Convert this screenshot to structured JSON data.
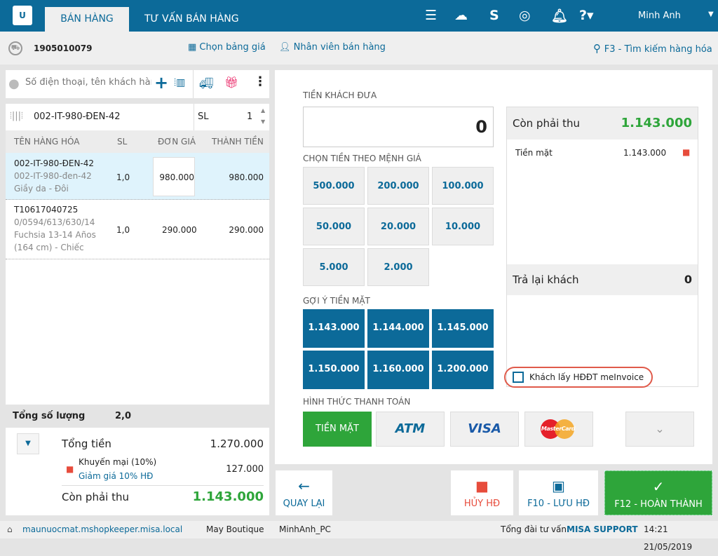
{
  "header": {
    "tabs": [
      {
        "label": "BÁN HÀNG",
        "active": true
      },
      {
        "label": "TƯ VẤN BÁN HÀNG",
        "active": false
      }
    ],
    "icons": [
      "menu-icon",
      "cloud-sync-icon",
      "invoice-s-icon",
      "swirl-logo-icon",
      "bell-icon",
      "help-icon"
    ],
    "user": "Minh Anh",
    "brand_color": "#0c6a99"
  },
  "subbar": {
    "invoice_no": "1905010079",
    "price_list": "Chọn bảng giá",
    "salesperson": "Nhân viên bán hàng",
    "search": "F3 - Tìm kiếm hàng hóa"
  },
  "customer": {
    "placeholder": "Số điện thoại, tên khách hàng"
  },
  "item_input": {
    "value": "002-IT-980-ĐEN-42",
    "qty_label": "SL",
    "qty": "1"
  },
  "table": {
    "headers": [
      "TÊN HÀNG HÓA",
      "SL",
      "ĐƠN GIÁ",
      "THÀNH TIỀN"
    ],
    "rows": [
      {
        "code": "002-IT-980-ĐEN-42",
        "sku": "002-IT-980-đen-42",
        "desc": "Giầy da - Đôi",
        "qty": "1,0",
        "price": "980.000",
        "total": "980.000"
      },
      {
        "code": "T10617040725",
        "sku": "0/0594/613/630/14",
        "desc": "Fuchsia 13-14 Años",
        "desc2": "(164 cm) - Chiếc",
        "qty": "1,0",
        "price": "290.000",
        "total": "290.000"
      }
    ]
  },
  "summary": {
    "qty_label": "Tổng số lượng",
    "qty": "2,0",
    "total_label": "Tổng tiền",
    "total": "1.270.000",
    "promo_label": "Khuyến mại (10%)",
    "promo_desc": "Giảm giá 10% HĐ",
    "promo": "127.000",
    "due_label": "Còn phải thu",
    "due": "1.143.000"
  },
  "payment": {
    "given_label": "TIỀN KHÁCH ĐƯA",
    "given": "0",
    "denom_label": "CHỌN TIỀN THEO MỆNH GIÁ",
    "denoms": [
      "500.000",
      "200.000",
      "100.000",
      "50.000",
      "20.000",
      "10.000",
      "5.000",
      "2.000"
    ],
    "suggest_label": "GỢI Ý TIỀN MẶT",
    "suggests": [
      "1.143.000",
      "1.144.000",
      "1.145.000",
      "1.150.000",
      "1.160.000",
      "1.200.000"
    ],
    "due_label": "Còn phải thu",
    "due": "1.143.000",
    "cash_label": "Tiền mặt",
    "cash": "1.143.000",
    "change_label": "Trả lại khách",
    "change": "0",
    "einvoice_label": "Khách lấy HĐĐT meInvoice",
    "einvoice_checked": false,
    "method_label": "HÌNH THỨC THANH TOÁN",
    "methods": [
      "TIỀN MẶT",
      "ATM",
      "VISA",
      "MasterCard"
    ],
    "selected_method": "TIỀN MẶT"
  },
  "actions": {
    "back": "QUAY LẠI",
    "cancel": "HỦY HĐ",
    "save": "F10 - LƯU HĐ",
    "finish": "F12 - HOÀN THÀNH"
  },
  "status": {
    "url": "maunuocmat.mshopkeeper.misa.local",
    "store": "May Boutique",
    "pc": "MinhAnh_PC",
    "hotline_label": "Tổng đài tư vấn:",
    "hotline": "MISA SUPPORT",
    "datetime": "14:21 21/05/2019"
  }
}
